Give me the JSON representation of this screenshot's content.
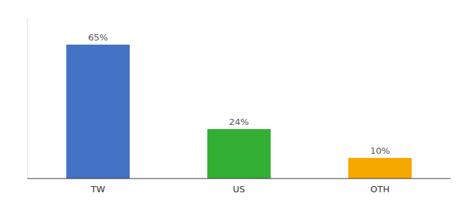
{
  "chart_data": {
    "type": "bar",
    "categories": [
      "TW",
      "US",
      "OTH"
    ],
    "values": [
      65,
      24,
      10
    ],
    "value_labels": [
      "65%",
      "24%",
      "10%"
    ],
    "colors": [
      "#4472c4",
      "#33b033",
      "#f5a800"
    ],
    "ylim": [
      0,
      78
    ],
    "yticks": [],
    "data_labels": true,
    "tick_labels": "x"
  }
}
